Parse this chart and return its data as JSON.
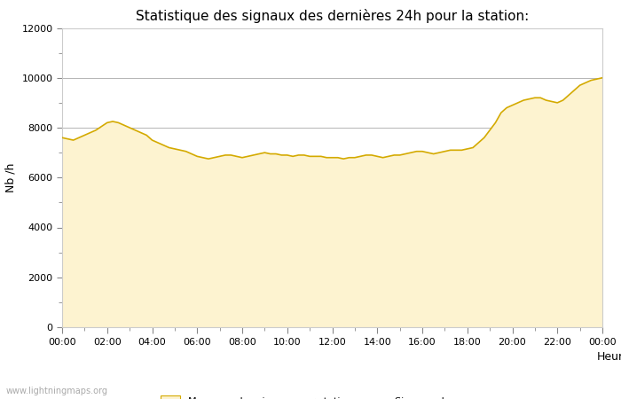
{
  "title": "Statistique des signaux des dernières 24h pour la station:",
  "xlabel": "Heure",
  "ylabel": "Nb /h",
  "xlim": [
    0,
    24
  ],
  "ylim": [
    0,
    12000
  ],
  "yticks": [
    0,
    2000,
    4000,
    6000,
    8000,
    10000,
    12000
  ],
  "xtick_labels": [
    "00:00",
    "02:00",
    "04:00",
    "06:00",
    "08:00",
    "10:00",
    "12:00",
    "14:00",
    "16:00",
    "18:00",
    "20:00",
    "22:00",
    "00:00"
  ],
  "xtick_positions": [
    0,
    2,
    4,
    6,
    8,
    10,
    12,
    14,
    16,
    18,
    20,
    22,
    24
  ],
  "fill_color": "#fdf3d0",
  "line_color": "#d4aa00",
  "background_color": "#ffffff",
  "grid_color": "#aaaaaa",
  "watermark": "www.lightningmaps.org",
  "legend_fill_label": "Moyenne des signaux par station",
  "legend_line_label": "Signaux de",
  "x_hours": [
    0.0,
    0.25,
    0.5,
    0.75,
    1.0,
    1.25,
    1.5,
    1.75,
    2.0,
    2.25,
    2.5,
    2.75,
    3.0,
    3.25,
    3.5,
    3.75,
    4.0,
    4.25,
    4.5,
    4.75,
    5.0,
    5.25,
    5.5,
    5.75,
    6.0,
    6.25,
    6.5,
    6.75,
    7.0,
    7.25,
    7.5,
    7.75,
    8.0,
    8.25,
    8.5,
    8.75,
    9.0,
    9.25,
    9.5,
    9.75,
    10.0,
    10.25,
    10.5,
    10.75,
    11.0,
    11.25,
    11.5,
    11.75,
    12.0,
    12.25,
    12.5,
    12.75,
    13.0,
    13.25,
    13.5,
    13.75,
    14.0,
    14.25,
    14.5,
    14.75,
    15.0,
    15.25,
    15.5,
    15.75,
    16.0,
    16.25,
    16.5,
    16.75,
    17.0,
    17.25,
    17.5,
    17.75,
    18.0,
    18.25,
    18.5,
    18.75,
    19.0,
    19.25,
    19.5,
    19.75,
    20.0,
    20.25,
    20.5,
    20.75,
    21.0,
    21.25,
    21.5,
    21.75,
    22.0,
    22.25,
    22.5,
    22.75,
    23.0,
    23.25,
    23.5,
    23.75,
    24.0
  ],
  "y_values": [
    7600,
    7550,
    7500,
    7600,
    7700,
    7800,
    7900,
    8050,
    8200,
    8250,
    8200,
    8100,
    8000,
    7900,
    7800,
    7700,
    7500,
    7400,
    7300,
    7200,
    7150,
    7100,
    7050,
    6950,
    6850,
    6800,
    6750,
    6800,
    6850,
    6900,
    6900,
    6850,
    6800,
    6850,
    6900,
    6950,
    7000,
    6950,
    6950,
    6900,
    6900,
    6850,
    6900,
    6900,
    6850,
    6850,
    6850,
    6800,
    6800,
    6800,
    6750,
    6800,
    6800,
    6850,
    6900,
    6900,
    6850,
    6800,
    6850,
    6900,
    6900,
    6950,
    7000,
    7050,
    7050,
    7000,
    6950,
    7000,
    7050,
    7100,
    7100,
    7100,
    7150,
    7200,
    7400,
    7600,
    7900,
    8200,
    8600,
    8800,
    8900,
    9000,
    9100,
    9150,
    9200,
    9200,
    9100,
    9050,
    9000,
    9100,
    9300,
    9500,
    9700,
    9800,
    9900,
    9950,
    10000
  ],
  "title_fontsize": 11,
  "axis_fontsize": 9,
  "tick_fontsize": 8,
  "watermark_fontsize": 7,
  "legend_fontsize": 8
}
